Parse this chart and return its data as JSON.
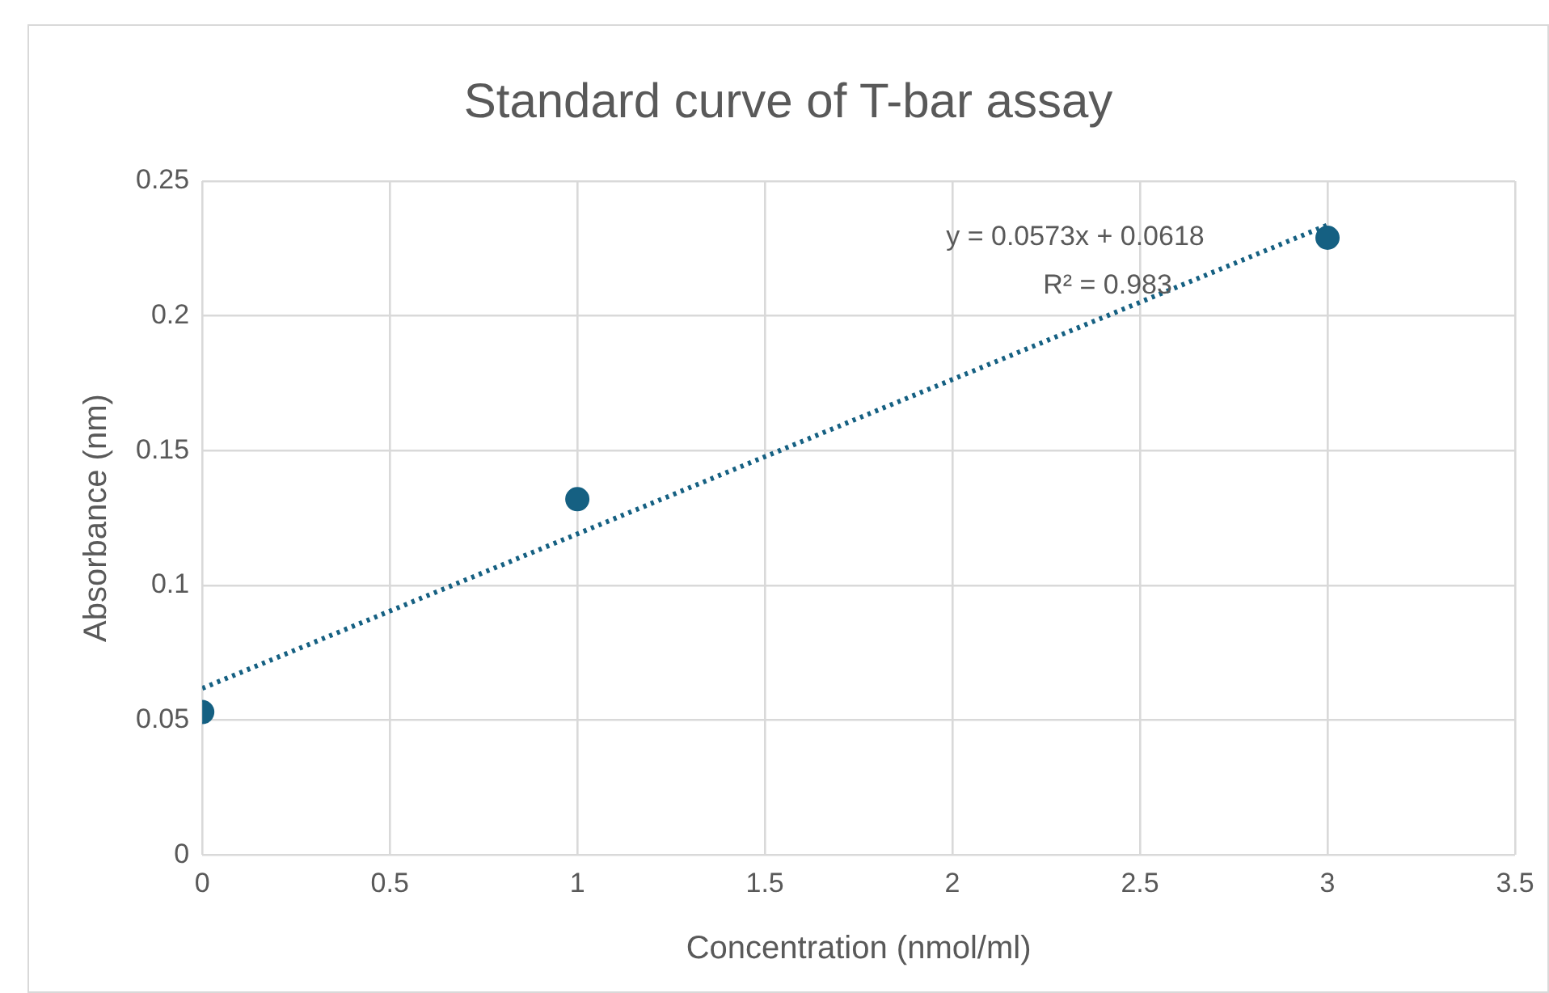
{
  "chart_data": {
    "type": "scatter",
    "title": "Standard curve of T-bar assay",
    "xlabel": "Concentration (nmol/ml)",
    "ylabel": "Absorbance (nm)",
    "xlim": [
      0,
      3.5
    ],
    "xticks": [
      0,
      0.5,
      1,
      1.5,
      2,
      2.5,
      3,
      3.5
    ],
    "ylim": [
      0,
      0.25
    ],
    "yticks": [
      0,
      0.05,
      0.1,
      0.15,
      0.2,
      0.25
    ],
    "grid": true,
    "legend": false,
    "series": [
      {
        "type": "scatter",
        "x": [
          0,
          1,
          3
        ],
        "values": [
          0.053,
          0.132,
          0.229
        ],
        "color": "#156082",
        "marker": "circle"
      },
      {
        "type": "line",
        "x": [
          0,
          3
        ],
        "values": [
          0.0618,
          0.2337
        ],
        "color": "#156082",
        "marker": "none",
        "line_style": "dotted"
      }
    ],
    "annotations": [
      "y = 0.0573x + 0.0618",
      "R² = 0.983"
    ]
  }
}
